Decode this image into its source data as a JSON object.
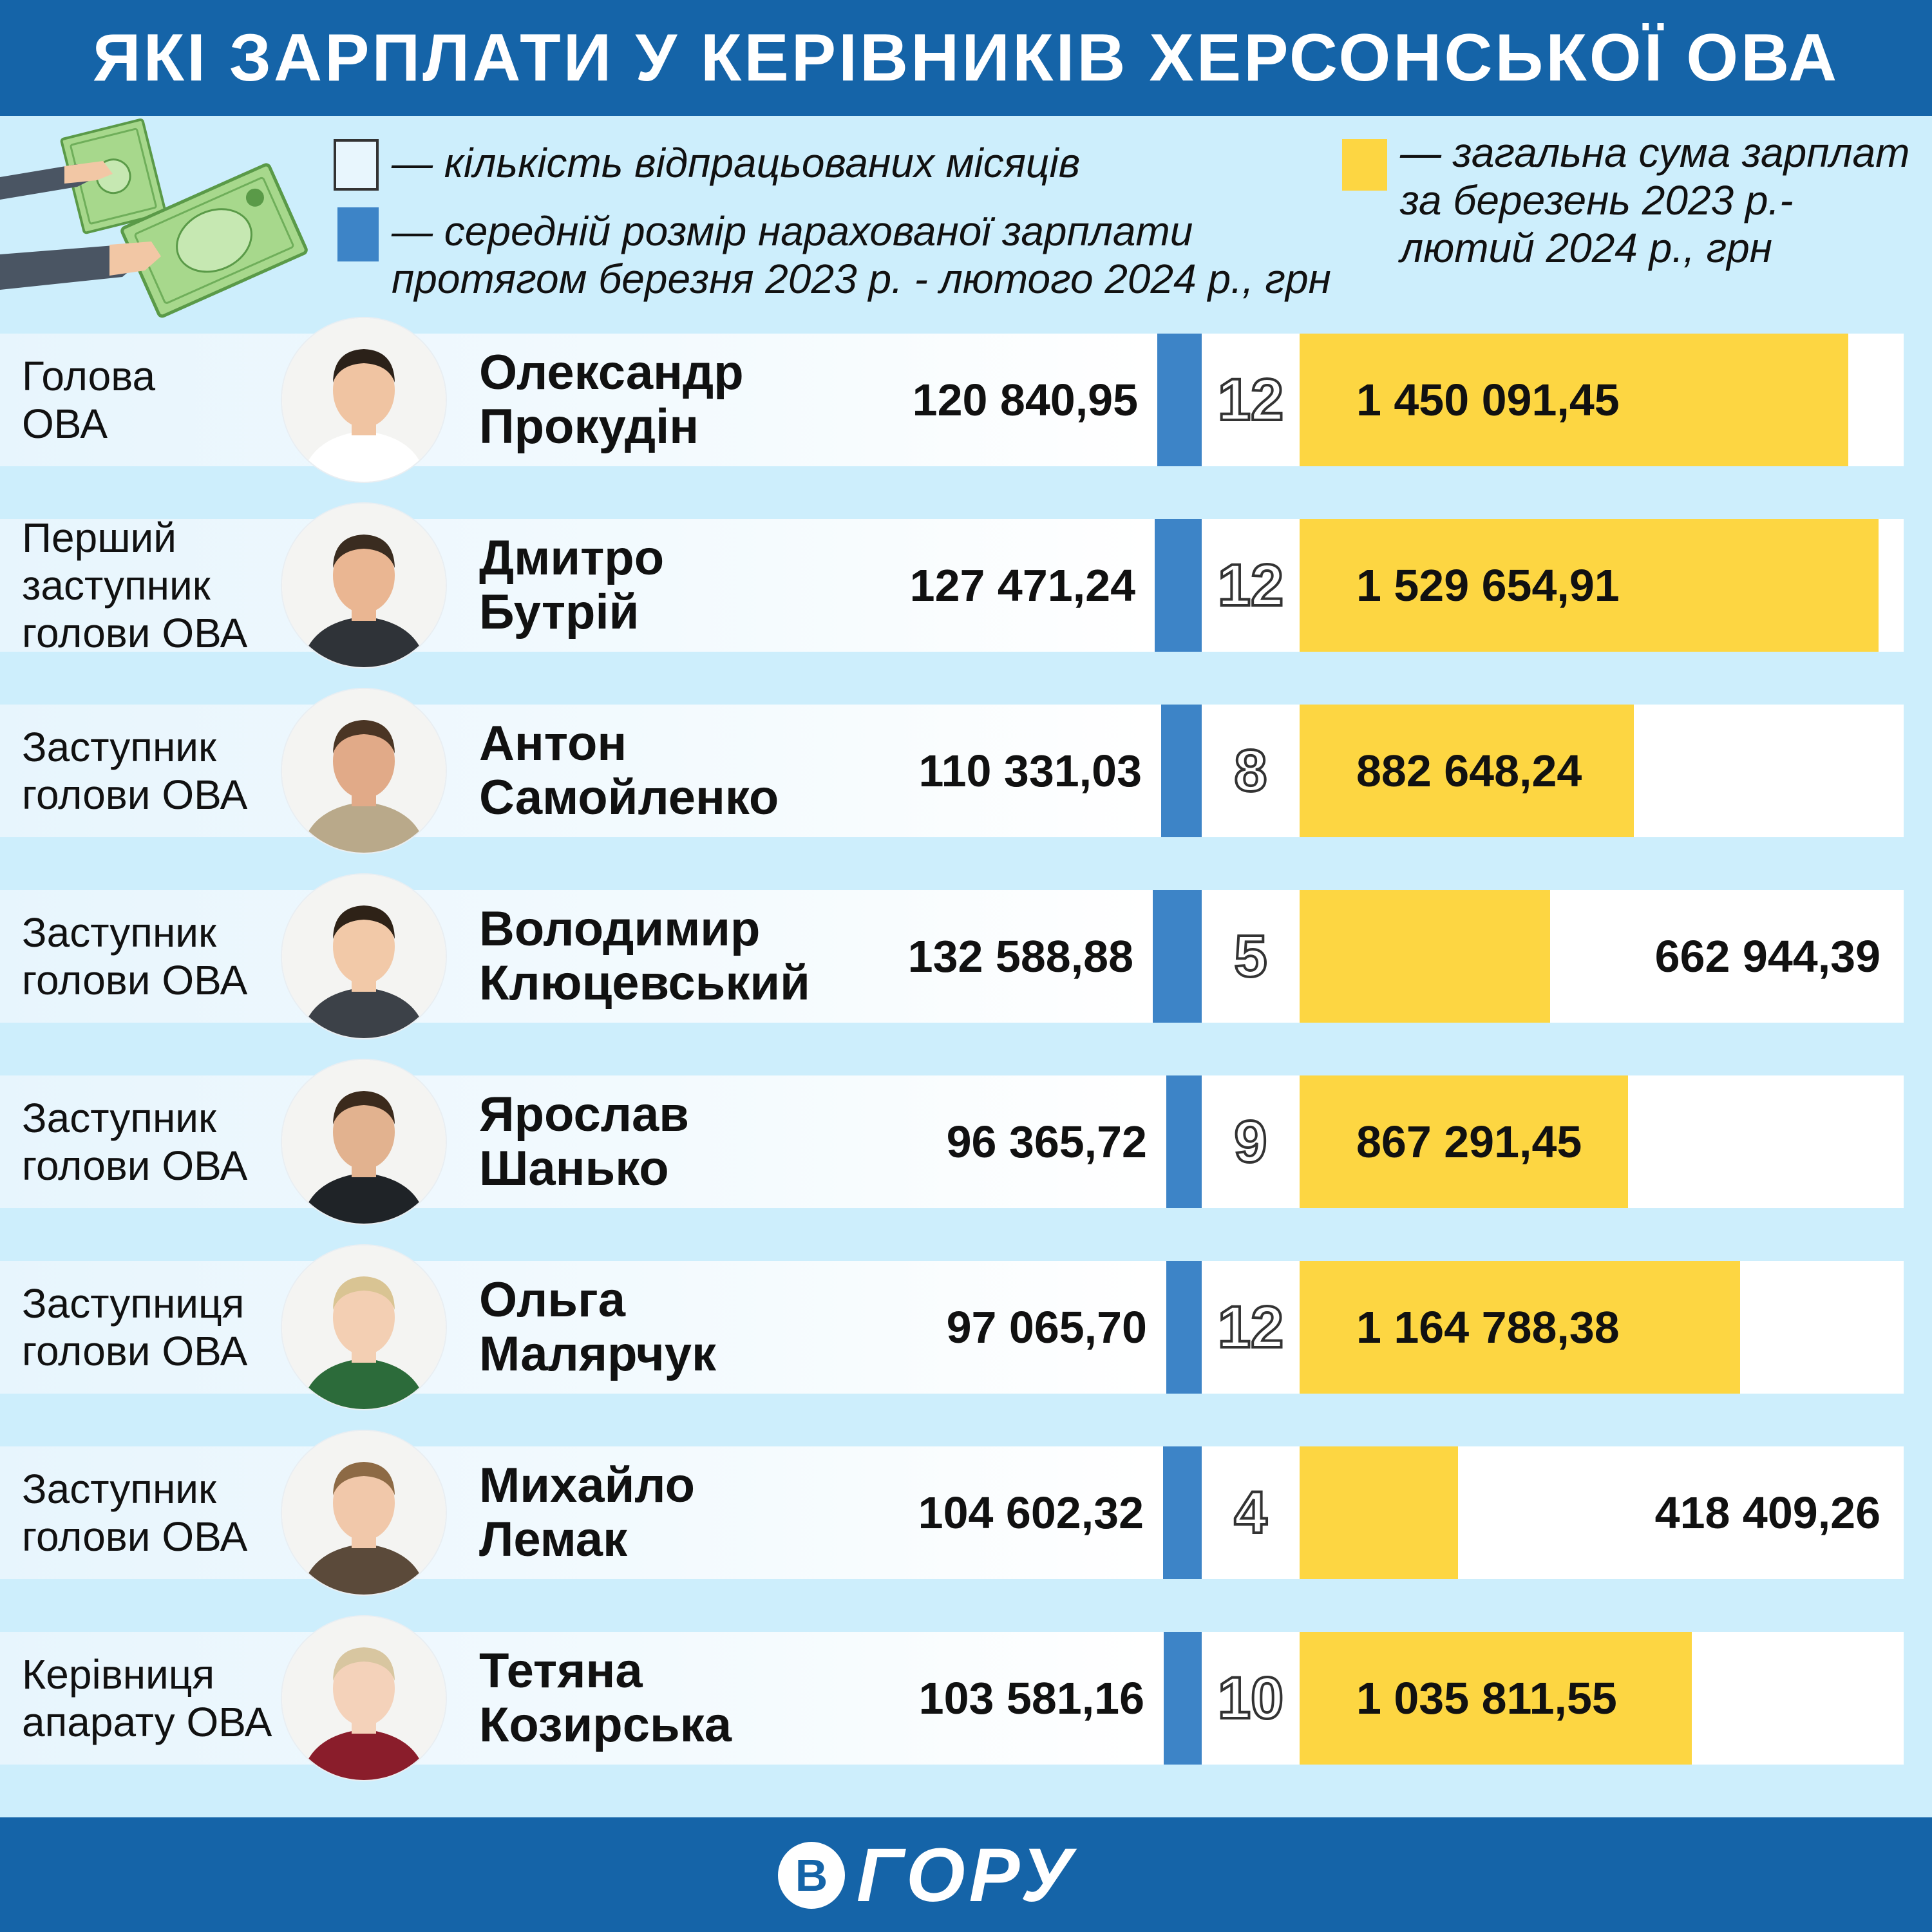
{
  "title": "ЯКІ ЗАРПЛАТИ У КЕРІВНИКІВ ХЕРСОНСЬКОЇ ОВА",
  "legend": {
    "months": "— кількість відпрацьованих місяців",
    "average": "— середній розмір нарахованої зарплати\nпротягом березня 2023 р. - лютого 2024 р., грн",
    "total": "— загальна сума зарплат\nза березень 2023 р.-\nлютий 2024 р., грн"
  },
  "colors": {
    "header": "#1564a8",
    "background": "#cdeefc",
    "average_bar": "#3d84c7",
    "total_bar": "#fdd642",
    "months_swatch": "#e8f6fd"
  },
  "icons": [
    "money-hands-icon",
    "portrait-photo",
    "vgoru-logo"
  ],
  "logo_text": "ВГОРУ",
  "chart_data": {
    "type": "bar",
    "categories": [
      "Олександр Прокудін",
      "Дмитро Бутрій",
      "Антон Самойленко",
      "Володимир Клюцевський",
      "Ярослав Шанько",
      "Ольга Малярчук",
      "Михайло Лемак",
      "Тетяна Козирська"
    ],
    "series": [
      {
        "name": "середній розмір нарахованої зарплати протягом березня 2023 р. - лютого 2024 р., грн",
        "values": [
          120840.95,
          127471.24,
          110331.03,
          132588.88,
          96365.72,
          97065.7,
          104602.32,
          103581.16
        ]
      },
      {
        "name": "кількість відпрацьованих місяців",
        "values": [
          12,
          12,
          8,
          5,
          9,
          12,
          4,
          10
        ]
      },
      {
        "name": "загальна сума зарплат за березень 2023 р.-лютий 2024 р., грн",
        "values": [
          1450091.45,
          1529654.91,
          882648.24,
          662944.39,
          867291.45,
          1164788.38,
          418409.26,
          1035811.55
        ]
      }
    ],
    "rows": [
      {
        "role": "Голова\nОВА",
        "name": "Олександр\nПрокудін",
        "avg_label": "120 840,95",
        "months_label": "12",
        "total_label": "1 450 091,45",
        "avg": 120840.95,
        "months": 12,
        "total": 1450091.45
      },
      {
        "role": "Перший\nзаступник\nголови ОВА",
        "name": "Дмитро\nБутрій",
        "avg_label": "127 471,24",
        "months_label": "12",
        "total_label": "1 529 654,91",
        "avg": 127471.24,
        "months": 12,
        "total": 1529654.91
      },
      {
        "role": "Заступник\nголови ОВА",
        "name": "Антон\nСамойленко",
        "avg_label": "110 331,03",
        "months_label": "8",
        "total_label": "882 648,24",
        "avg": 110331.03,
        "months": 8,
        "total": 882648.24
      },
      {
        "role": "Заступник\nголови ОВА",
        "name": "Володимир\nКлюцевський",
        "avg_label": "132 588,88",
        "months_label": "5",
        "total_label": "662 944,39",
        "avg": 132588.88,
        "months": 5,
        "total": 662944.39
      },
      {
        "role": "Заступник\nголови ОВА",
        "name": "Ярослав\nШанько",
        "avg_label": "96 365,72",
        "months_label": "9",
        "total_label": "867 291,45",
        "avg": 96365.72,
        "months": 9,
        "total": 867291.45
      },
      {
        "role": "Заступниця\nголови ОВА",
        "name": "Ольга\nМалярчук",
        "avg_label": "97 065,70",
        "months_label": "12",
        "total_label": "1 164 788,38",
        "avg": 97065.7,
        "months": 12,
        "total": 1164788.38
      },
      {
        "role": "Заступник\nголови ОВА",
        "name": "Михайло\nЛемак",
        "avg_label": "104 602,32",
        "months_label": "4",
        "total_label": "418 409,26",
        "avg": 104602.32,
        "months": 4,
        "total": 418409.26
      },
      {
        "role": "Керівниця\nапарату ОВА",
        "name": "Тетяна\nКозирська",
        "avg_label": "103 581,16",
        "months_label": "10",
        "total_label": "1 035 811,55",
        "avg": 103581.16,
        "months": 10,
        "total": 1035811.55
      }
    ]
  }
}
